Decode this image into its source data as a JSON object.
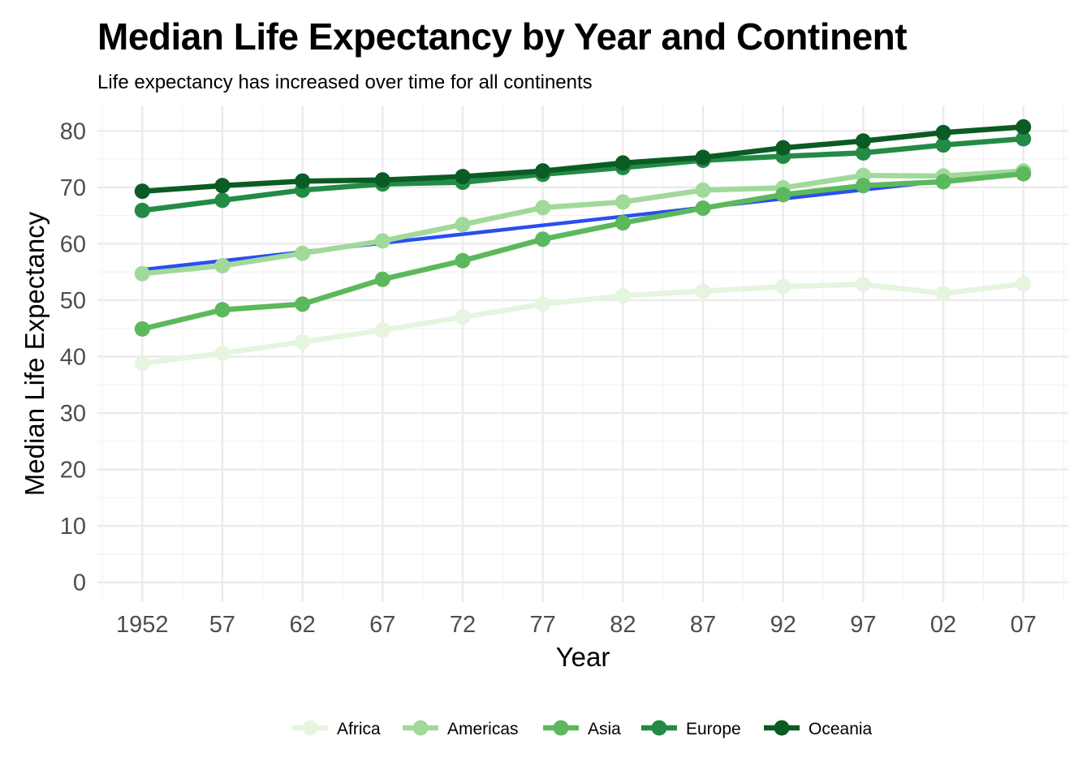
{
  "chart_data": {
    "type": "line",
    "title": "Median Life Expectancy by Year and Continent",
    "subtitle": "Life expectancy has increased over time for all continents",
    "xlabel": "Year",
    "ylabel": "Median Life Expectancy",
    "x": [
      1952,
      1957,
      1962,
      1967,
      1972,
      1977,
      1982,
      1987,
      1992,
      1997,
      2002,
      2007
    ],
    "x_tick_labels": [
      "1952",
      "57",
      "62",
      "67",
      "72",
      "77",
      "82",
      "87",
      "92",
      "97",
      "02",
      "07"
    ],
    "y_ticks": [
      0,
      10,
      20,
      30,
      40,
      50,
      60,
      70,
      80
    ],
    "ylim": [
      -3.5,
      84.5
    ],
    "xlim": [
      1949.2,
      2009.8
    ],
    "grid": true,
    "legend_position": "bottom",
    "series": [
      {
        "name": "Africa",
        "color": "#e5f5e0",
        "values": [
          38.8,
          40.6,
          42.6,
          44.7,
          47.0,
          49.3,
          50.8,
          51.6,
          52.4,
          52.8,
          51.2,
          52.9
        ]
      },
      {
        "name": "Americas",
        "color": "#a1d99b",
        "values": [
          54.7,
          56.1,
          58.3,
          60.5,
          63.4,
          66.4,
          67.4,
          69.5,
          69.9,
          72.1,
          72.0,
          72.9
        ]
      },
      {
        "name": "Asia",
        "color": "#5cb85c",
        "values": [
          44.9,
          48.3,
          49.3,
          53.7,
          57.0,
          60.8,
          63.7,
          66.3,
          68.7,
          70.3,
          71.0,
          72.4
        ]
      },
      {
        "name": "Europe",
        "color": "#238b45",
        "values": [
          65.9,
          67.7,
          69.5,
          70.6,
          70.9,
          72.3,
          73.5,
          74.8,
          75.5,
          76.1,
          77.5,
          78.6
        ]
      },
      {
        "name": "Oceania",
        "color": "#0b5b24",
        "values": [
          69.3,
          70.3,
          71.1,
          71.3,
          71.9,
          72.9,
          74.3,
          75.3,
          77.0,
          78.2,
          79.7,
          80.7
        ]
      }
    ],
    "trend_line": {
      "color": "#2a4eef",
      "x": [
        1952,
        2007
      ],
      "values": [
        55.4,
        72.7
      ]
    }
  }
}
